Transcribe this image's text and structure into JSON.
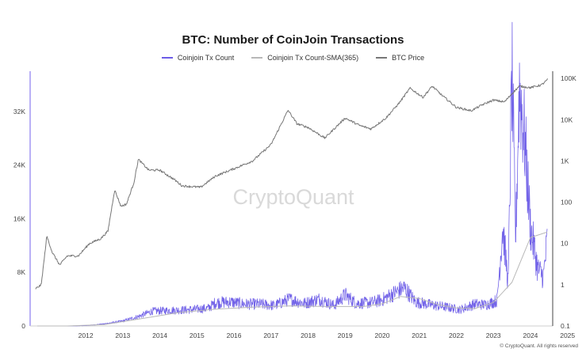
{
  "chart_data": {
    "type": "line",
    "title": "BTC: Number of CoinJoin Transactions",
    "x_ticks": [
      "2012",
      "2013",
      "2014",
      "2015",
      "2016",
      "2017",
      "2018",
      "2019",
      "2020",
      "2021",
      "2022",
      "2023",
      "2024",
      "2025"
    ],
    "y_left_ticks": [
      "0",
      "8K",
      "16K",
      "24K",
      "32K"
    ],
    "y_left_lim": [
      0,
      38000
    ],
    "y_right_ticks": [
      "0.1",
      "1",
      "10",
      "100",
      "1K",
      "10K",
      "100K"
    ],
    "y_right_scale": "log",
    "y_right_lim": [
      0.1,
      150000
    ],
    "legend_position": "top-center",
    "grid": false,
    "series": [
      {
        "name": "Coinjoin Tx Count",
        "axis": "left",
        "color": "#6c5ce7",
        "x": [
          2011.2,
          2012.0,
          2012.5,
          2013.0,
          2013.5,
          2013.9,
          2014.3,
          2014.8,
          2015.3,
          2015.8,
          2016.0,
          2016.4,
          2016.8,
          2017.2,
          2017.6,
          2018.0,
          2018.4,
          2018.8,
          2019.2,
          2019.5,
          2019.8,
          2020.2,
          2020.5,
          2020.8,
          2021.1,
          2021.4,
          2021.8,
          2022.2,
          2022.6,
          2023.0,
          2023.3,
          2023.6,
          2023.75,
          2023.9,
          2024.0,
          2024.1,
          2024.2,
          2024.35,
          2024.5,
          2024.7,
          2024.85,
          2024.95
        ],
        "y": [
          0,
          0,
          50,
          300,
          700,
          1300,
          2100,
          2200,
          2300,
          2500,
          3300,
          3400,
          3100,
          3100,
          2900,
          3800,
          3200,
          3800,
          2900,
          4400,
          3200,
          3300,
          3700,
          4600,
          5400,
          3400,
          3000,
          2700,
          2300,
          3100,
          3000,
          3600,
          14000,
          6000,
          36000,
          12000,
          34000,
          26000,
          14000,
          8000,
          7000,
          12000
        ]
      },
      {
        "name": "Coinjoin Tx Count-SMA(365)",
        "axis": "left",
        "color": "#b8b8b8",
        "x": [
          2011.2,
          2012.0,
          2013.0,
          2014.0,
          2015.0,
          2016.0,
          2017.0,
          2018.0,
          2019.0,
          2020.0,
          2020.5,
          2021.0,
          2021.5,
          2022.0,
          2022.5,
          2023.0,
          2023.5,
          2024.0,
          2024.5,
          2024.95
        ],
        "y": [
          0,
          0,
          200,
          1100,
          2000,
          2500,
          2800,
          3000,
          2900,
          2900,
          3300,
          4400,
          4100,
          3200,
          2700,
          2600,
          3500,
          6500,
          13200,
          14000
        ]
      },
      {
        "name": "BTC Price",
        "axis": "right",
        "color": "#777777",
        "x": [
          2011.15,
          2011.3,
          2011.45,
          2011.6,
          2011.8,
          2012.0,
          2012.3,
          2012.6,
          2012.9,
          2013.1,
          2013.28,
          2013.45,
          2013.6,
          2013.8,
          2013.92,
          2014.2,
          2014.5,
          2014.9,
          2015.1,
          2015.6,
          2016.0,
          2016.5,
          2017.0,
          2017.5,
          2017.96,
          2018.2,
          2018.5,
          2018.95,
          2019.5,
          2019.9,
          2020.2,
          2020.6,
          2020.95,
          2021.25,
          2021.6,
          2021.85,
          2022.1,
          2022.5,
          2022.9,
          2023.2,
          2023.5,
          2023.8,
          2024.0,
          2024.2,
          2024.5,
          2024.8,
          2024.97
        ],
        "y": [
          0.8,
          1.0,
          15,
          6,
          3,
          5,
          5,
          10,
          13,
          20,
          200,
          80,
          90,
          300,
          1100,
          600,
          600,
          350,
          250,
          230,
          430,
          650,
          1000,
          2500,
          17000,
          8000,
          6500,
          3600,
          11000,
          7200,
          6000,
          11000,
          25000,
          58000,
          35000,
          65000,
          40000,
          20000,
          16500,
          23000,
          30000,
          27000,
          43000,
          65000,
          60000,
          70000,
          95000
        ]
      }
    ],
    "watermark": "CryptoQuant",
    "footer": "© CryptoQuant. All rights reserved"
  }
}
